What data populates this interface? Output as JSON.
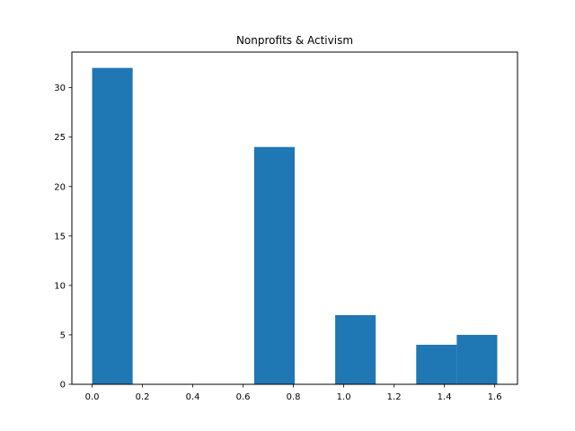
{
  "chart_data": {
    "type": "histogram",
    "title": "Nonprofits & Activism",
    "xlabel": "",
    "ylabel": "",
    "bar_color": "#1f77b4",
    "bins": [
      {
        "x0": 0.0,
        "x1": 0.161,
        "count": 32
      },
      {
        "x0": 0.161,
        "x1": 0.322,
        "count": 0
      },
      {
        "x0": 0.322,
        "x1": 0.483,
        "count": 0
      },
      {
        "x0": 0.483,
        "x1": 0.644,
        "count": 0
      },
      {
        "x0": 0.644,
        "x1": 0.805,
        "count": 24
      },
      {
        "x0": 0.805,
        "x1": 0.966,
        "count": 0
      },
      {
        "x0": 0.966,
        "x1": 1.127,
        "count": 7
      },
      {
        "x0": 1.127,
        "x1": 1.288,
        "count": 0
      },
      {
        "x0": 1.288,
        "x1": 1.449,
        "count": 4
      },
      {
        "x0": 1.449,
        "x1": 1.61,
        "count": 5
      }
    ],
    "xlim": [
      -0.0805,
      1.6905
    ],
    "ylim": [
      0,
      33.6
    ],
    "xticks": [
      0.0,
      0.2,
      0.4,
      0.6,
      0.8,
      1.0,
      1.2,
      1.4,
      1.6
    ],
    "xtick_labels": [
      "0.0",
      "0.2",
      "0.4",
      "0.6",
      "0.8",
      "1.0",
      "1.2",
      "1.4",
      "1.6"
    ],
    "yticks": [
      0,
      5,
      10,
      15,
      20,
      25,
      30
    ],
    "ytick_labels": [
      "0",
      "5",
      "10",
      "15",
      "20",
      "25",
      "30"
    ],
    "grid": false,
    "legend": "none"
  }
}
